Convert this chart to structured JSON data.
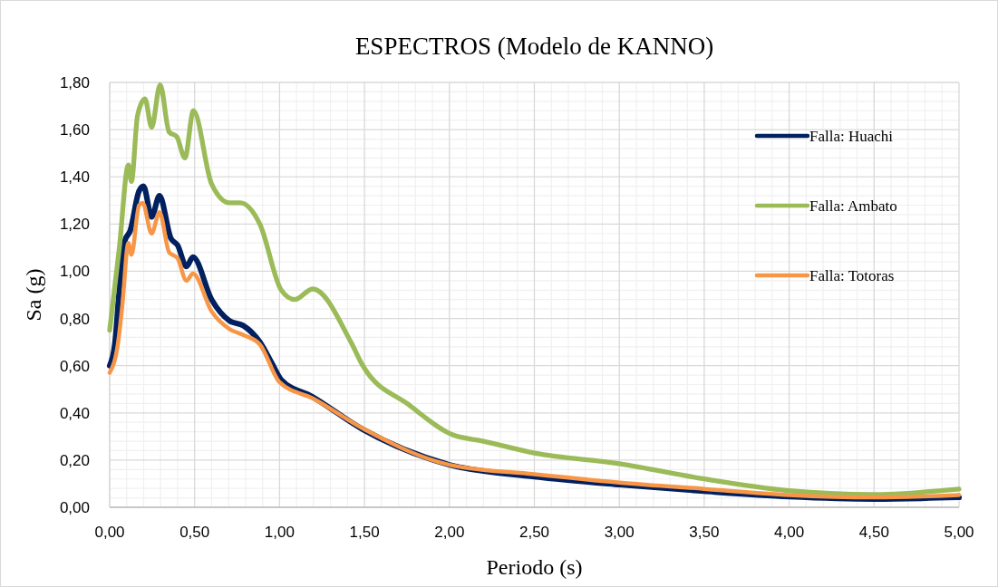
{
  "chart_data": {
    "type": "line",
    "title": "ESPECTROS (Modelo de KANNO)",
    "xlabel": "Periodo (s)",
    "ylabel": "Sa (g)",
    "xlim": [
      0,
      5
    ],
    "xticks": [
      {
        "value": 0,
        "label": "0,00"
      },
      {
        "value": 0.5,
        "label": "0,50"
      },
      {
        "value": 1,
        "label": "1,00"
      },
      {
        "value": 1.5,
        "label": "1,50"
      },
      {
        "value": 2,
        "label": "2,00"
      },
      {
        "value": 2.5,
        "label": "2,50"
      },
      {
        "value": 3,
        "label": "3,00"
      },
      {
        "value": 3.5,
        "label": "3,50"
      },
      {
        "value": 4,
        "label": "4,00"
      },
      {
        "value": 4.5,
        "label": "4,50"
      },
      {
        "value": 5,
        "label": "5,00"
      }
    ],
    "ylim": [
      0,
      1.8
    ],
    "yticks": [
      {
        "value": 0,
        "label": "0,00"
      },
      {
        "value": 0.2,
        "label": "0,20"
      },
      {
        "value": 0.4,
        "label": "0,40"
      },
      {
        "value": 0.6,
        "label": "0,60"
      },
      {
        "value": 0.8,
        "label": "0,80"
      },
      {
        "value": 1,
        "label": "1,00"
      },
      {
        "value": 1.2,
        "label": "1,20"
      },
      {
        "value": 1.4,
        "label": "1,40"
      },
      {
        "value": 1.6,
        "label": "1,60"
      },
      {
        "value": 1.8,
        "label": "1,80"
      }
    ],
    "grid": true,
    "legend": "right",
    "marker": "none",
    "line_style": "solid",
    "series": [
      {
        "name": "Falla: Huachi",
        "color": "#002060",
        "x": [
          0,
          0.03,
          0.06,
          0.09,
          0.12,
          0.173,
          0.199,
          0.247,
          0.293,
          0.36,
          0.4,
          0.452,
          0.49,
          0.6,
          0.706,
          0.786,
          0.884,
          0.955,
          1.01,
          1.19,
          1.49,
          2.0,
          2.5,
          3.0,
          3.5,
          4.0,
          4.5,
          5.0
        ],
        "values": [
          0.6,
          0.69,
          0.95,
          1.13,
          1.17,
          1.34,
          1.36,
          1.23,
          1.32,
          1.14,
          1.11,
          1.02,
          1.06,
          0.88,
          0.79,
          0.77,
          0.7,
          0.61,
          0.54,
          0.47,
          0.33,
          0.18,
          0.13,
          0.096,
          0.068,
          0.045,
          0.035,
          0.042
        ]
      },
      {
        "name": "Falla: Ambato",
        "color": "#9bbb59",
        "x": [
          0,
          0.057,
          0.11,
          0.128,
          0.164,
          0.208,
          0.247,
          0.297,
          0.35,
          0.395,
          0.443,
          0.493,
          0.6,
          0.706,
          0.768,
          0.884,
          1.01,
          1.09,
          1.195,
          1.42,
          1.49,
          1.76,
          2.02,
          2.2,
          2.5,
          3.0,
          3.5,
          4.0,
          4.49,
          5.0
        ],
        "values": [
          0.75,
          1.1,
          1.45,
          1.38,
          1.66,
          1.73,
          1.61,
          1.79,
          1.59,
          1.57,
          1.48,
          1.68,
          1.37,
          1.29,
          1.29,
          1.2,
          0.92,
          0.88,
          0.925,
          0.7,
          0.6,
          0.435,
          0.307,
          0.28,
          0.23,
          0.185,
          0.12,
          0.07,
          0.054,
          0.077
        ]
      },
      {
        "name": "Falla: Totoras",
        "color": "#f79646",
        "x": [
          0,
          0.05,
          0.075,
          0.11,
          0.128,
          0.173,
          0.194,
          0.247,
          0.293,
          0.35,
          0.4,
          0.452,
          0.49,
          0.6,
          0.706,
          0.786,
          0.884,
          1.0,
          1.2,
          1.5,
          2.0,
          2.5,
          3.0,
          3.5,
          4.0,
          4.5,
          5.0
        ],
        "values": [
          0.57,
          0.7,
          0.86,
          1.12,
          1.07,
          1.28,
          1.29,
          1.16,
          1.25,
          1.08,
          1.055,
          0.96,
          0.99,
          0.83,
          0.755,
          0.73,
          0.69,
          0.53,
          0.46,
          0.33,
          0.18,
          0.14,
          0.105,
          0.078,
          0.052,
          0.042,
          0.052
        ]
      }
    ]
  }
}
